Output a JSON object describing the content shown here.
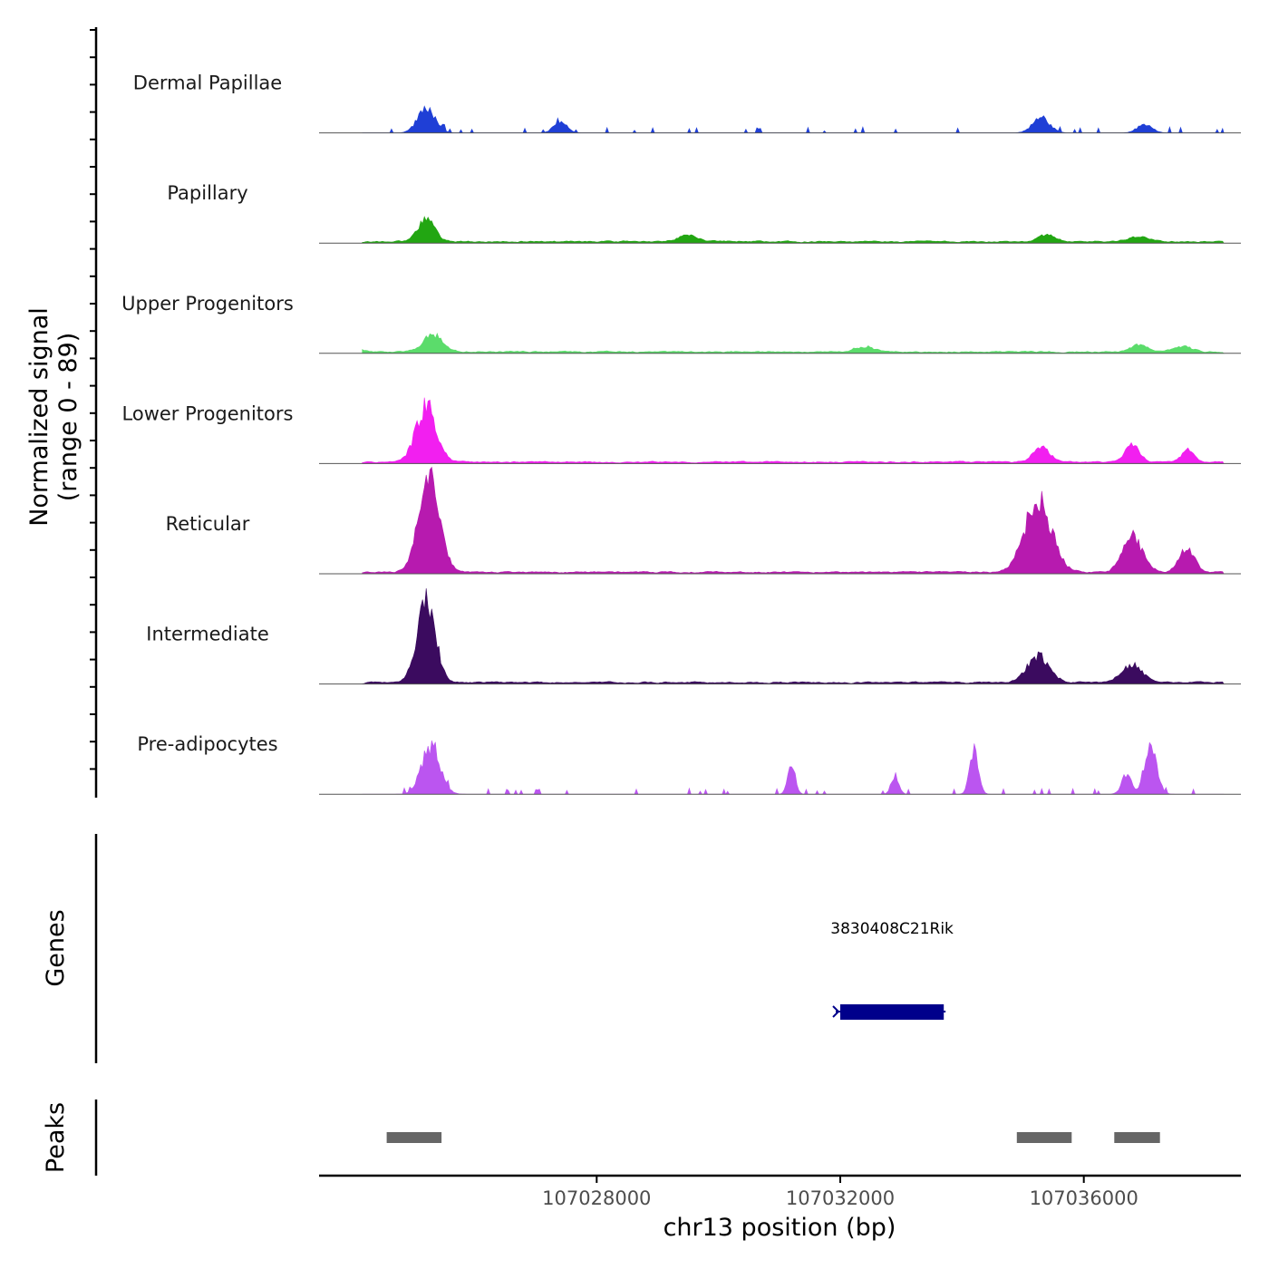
{
  "chart_data": {
    "type": "area",
    "title": "",
    "ylabel_line1": "Normalized signal",
    "ylabel_line2": "(range 0 - 89)",
    "y_range": [
      0,
      89
    ],
    "xlabel": "chr13 position (bp)",
    "x_range": [
      107023440,
      107038580
    ],
    "x_ticks": [
      107028000,
      107032000,
      107036000
    ],
    "x_tick_labels": [
      "107028000",
      "107032000",
      "107036000"
    ],
    "series": [
      {
        "name": "Dermal Papillae",
        "color": "#1f3fd6",
        "peaks": [
          [
            107025200,
            0.23,
            140
          ],
          [
            107027400,
            0.1,
            110
          ],
          [
            107035300,
            0.14,
            140
          ],
          [
            107037000,
            0.08,
            120
          ]
        ]
      },
      {
        "name": "Papillary",
        "color": "#22a612",
        "peaks": [
          [
            107025200,
            0.2,
            140
          ],
          [
            107029500,
            0.06,
            150
          ],
          [
            107035400,
            0.06,
            150
          ],
          [
            107036900,
            0.04,
            180
          ]
        ]
      },
      {
        "name": "Upper Progenitors",
        "color": "#5bdc6b",
        "peaks": [
          [
            107025300,
            0.16,
            160
          ],
          [
            107024000,
            0.07,
            120
          ],
          [
            107032400,
            0.05,
            160
          ],
          [
            107036900,
            0.06,
            150
          ],
          [
            107037600,
            0.06,
            150
          ]
        ]
      },
      {
        "name": "Lower Progenitors",
        "color": "#f21ff0",
        "peaks": [
          [
            107025200,
            0.52,
            170
          ],
          [
            107035300,
            0.13,
            140
          ],
          [
            107036800,
            0.17,
            110
          ],
          [
            107037700,
            0.11,
            100
          ]
        ]
      },
      {
        "name": "Reticular",
        "color": "#b71aaf",
        "peaks": [
          [
            107025250,
            0.9,
            170
          ],
          [
            107035250,
            0.66,
            220
          ],
          [
            107036800,
            0.33,
            160
          ],
          [
            107037700,
            0.22,
            130
          ]
        ]
      },
      {
        "name": "Intermediate",
        "color": "#3b0b5f",
        "peaks": [
          [
            107025200,
            0.78,
            150
          ],
          [
            107035250,
            0.25,
            180
          ],
          [
            107036800,
            0.17,
            160
          ]
        ]
      },
      {
        "name": "Pre-adipocytes",
        "color": "#bb55f0",
        "peaks": [
          [
            107025280,
            0.46,
            150
          ],
          [
            107031200,
            0.28,
            60
          ],
          [
            107034200,
            0.44,
            70
          ],
          [
            107037100,
            0.44,
            100
          ],
          [
            107036700,
            0.18,
            80
          ],
          [
            107032900,
            0.18,
            60
          ]
        ]
      }
    ],
    "genes": [
      {
        "name": "3830408C21Rik",
        "start": 107032000,
        "end": 107033700,
        "strand": "-",
        "color": "#00008b"
      }
    ],
    "peaks_track": {
      "label": "Peaks",
      "color": "#666666",
      "regions": [
        [
          107024550,
          107025450
        ],
        [
          107034900,
          107035800
        ],
        [
          107036500,
          107037250
        ]
      ]
    },
    "genes_track_label": "Genes"
  }
}
